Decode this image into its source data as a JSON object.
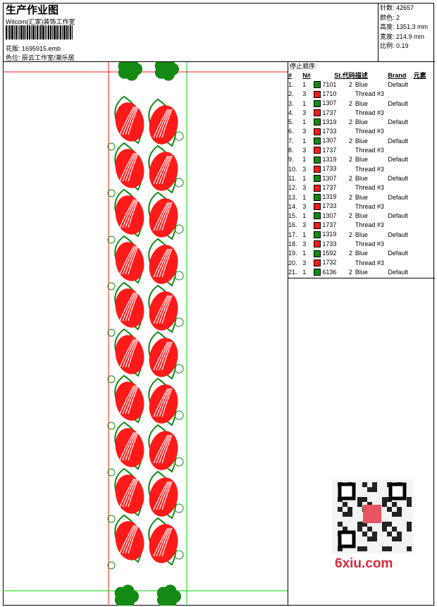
{
  "header": {
    "title": "生产作业图",
    "company": "Wilcom(汇家)装饰工作室",
    "file": "花版: 1695915.emb",
    "color_position": "色位: 辰云工作室/潮乐居"
  },
  "info": [
    {
      "label": "针数:",
      "value": "42657"
    },
    {
      "label": "颜色:",
      "value": "2"
    },
    {
      "label": "高度:",
      "value": "1351.3 mm"
    },
    {
      "label": "宽度:",
      "value": "214.9 mm"
    },
    {
      "label": "比例:",
      "value": "0.19"
    }
  ],
  "colors": {
    "green": "#138a13",
    "red": "#ff1a1a"
  },
  "stop_sequence": {
    "title": "停止顺序:",
    "columns": [
      "#",
      "N#",
      "St.",
      "代码",
      "描述",
      "Brand",
      "元素"
    ],
    "rows": [
      {
        "n": "1.",
        "needle": "1",
        "color": "green",
        "st": "7101",
        "code": "2",
        "desc": "Blue",
        "brand": "Default"
      },
      {
        "n": "2.",
        "needle": "3",
        "color": "red",
        "st": "1710",
        "code": "",
        "desc": "Thread #3",
        "brand": ""
      },
      {
        "n": "3.",
        "needle": "1",
        "color": "green",
        "st": "1307",
        "code": "2",
        "desc": "Blue",
        "brand": "Default"
      },
      {
        "n": "4.",
        "needle": "3",
        "color": "red",
        "st": "1737",
        "code": "",
        "desc": "Thread #3",
        "brand": ""
      },
      {
        "n": "5.",
        "needle": "1",
        "color": "green",
        "st": "1319",
        "code": "2",
        "desc": "Blue",
        "brand": "Default"
      },
      {
        "n": "6.",
        "needle": "3",
        "color": "red",
        "st": "1733",
        "code": "",
        "desc": "Thread #3",
        "brand": ""
      },
      {
        "n": "7.",
        "needle": "1",
        "color": "green",
        "st": "1307",
        "code": "2",
        "desc": "Blue",
        "brand": "Default"
      },
      {
        "n": "8.",
        "needle": "3",
        "color": "red",
        "st": "1737",
        "code": "",
        "desc": "Thread #3",
        "brand": ""
      },
      {
        "n": "9.",
        "needle": "1",
        "color": "green",
        "st": "1319",
        "code": "2",
        "desc": "Blue",
        "brand": "Default"
      },
      {
        "n": "10.",
        "needle": "3",
        "color": "red",
        "st": "1733",
        "code": "",
        "desc": "Thread #3",
        "brand": ""
      },
      {
        "n": "11.",
        "needle": "1",
        "color": "green",
        "st": "1307",
        "code": "2",
        "desc": "Blue",
        "brand": "Default"
      },
      {
        "n": "12.",
        "needle": "3",
        "color": "red",
        "st": "1737",
        "code": "",
        "desc": "Thread #3",
        "brand": ""
      },
      {
        "n": "13.",
        "needle": "1",
        "color": "green",
        "st": "1319",
        "code": "2",
        "desc": "Blue",
        "brand": "Default"
      },
      {
        "n": "14.",
        "needle": "3",
        "color": "red",
        "st": "1733",
        "code": "",
        "desc": "Thread #3",
        "brand": ""
      },
      {
        "n": "15.",
        "needle": "1",
        "color": "green",
        "st": "1307",
        "code": "2",
        "desc": "Blue",
        "brand": "Default"
      },
      {
        "n": "16.",
        "needle": "3",
        "color": "red",
        "st": "1737",
        "code": "",
        "desc": "Thread #3",
        "brand": ""
      },
      {
        "n": "17.",
        "needle": "1",
        "color": "green",
        "st": "1319",
        "code": "2",
        "desc": "Blue",
        "brand": "Default"
      },
      {
        "n": "18.",
        "needle": "3",
        "color": "red",
        "st": "1733",
        "code": "",
        "desc": "Thread #3",
        "brand": ""
      },
      {
        "n": "19.",
        "needle": "1",
        "color": "green",
        "st": "1592",
        "code": "2",
        "desc": "Blue",
        "brand": "Default"
      },
      {
        "n": "20.",
        "needle": "3",
        "color": "red",
        "st": "1732",
        "code": "",
        "desc": "Thread #3",
        "brand": ""
      },
      {
        "n": "21.",
        "needle": "1",
        "color": "green",
        "st": "6136",
        "code": "2",
        "desc": "Blue",
        "brand": "Default"
      }
    ]
  },
  "watermark": "6xiu.com"
}
